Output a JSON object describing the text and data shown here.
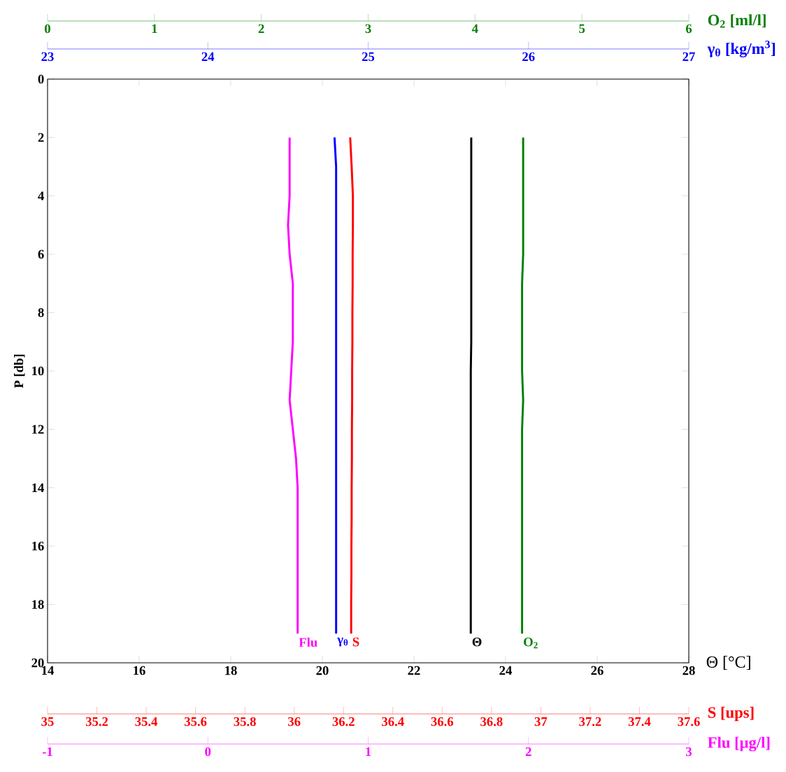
{
  "chart_data": [
    {
      "type": "line",
      "xlabel": "Θ [°C]",
      "ylabel": "P [db]",
      "xlim": [
        14,
        28
      ],
      "xticks": [
        14,
        16,
        18,
        20,
        22,
        24,
        26,
        28
      ],
      "ylim": [
        20,
        0
      ],
      "yticks": [
        0,
        2,
        4,
        6,
        8,
        10,
        12,
        14,
        16,
        18,
        20
      ],
      "x2lim": [
        0,
        6
      ],
      "x2ticks": [
        0,
        1,
        2,
        3,
        4,
        5,
        6
      ],
      "x2label": "O$_{2}$ [ml/l]",
      "series": [
        {
          "name": "Θ",
          "color": "#000000",
          "x": [
            23.25,
            23.25,
            23.25,
            23.25,
            23.25,
            23.25,
            23.25,
            23.25,
            23.24,
            23.24,
            23.24,
            23.24,
            23.24,
            23.24,
            23.24,
            23.24,
            23.24,
            23.24
          ],
          "values": [
            2,
            3,
            4,
            5,
            6,
            7,
            8,
            9,
            10,
            11,
            12,
            13,
            14,
            15,
            16,
            17,
            18,
            19
          ]
        },
        {
          "name": "O$_{2}$",
          "color": "#008000",
          "axis": "x2",
          "x": [
            4.45,
            4.45,
            4.45,
            4.45,
            4.45,
            4.44,
            4.44,
            4.44,
            4.44,
            4.45,
            4.44,
            4.44,
            4.44,
            4.44,
            4.44,
            4.44,
            4.44,
            4.44
          ],
          "values": [
            2,
            3,
            4,
            5,
            6,
            7,
            8,
            9,
            10,
            11,
            12,
            13,
            14,
            15,
            16,
            17,
            18,
            19
          ]
        }
      ]
    },
    {
      "type": "line",
      "xlabel": "S [ups]",
      "tick_labels": "x",
      "xlim": [
        35,
        37.6
      ],
      "xticks": [
        35,
        35.2,
        35.4,
        35.6,
        35.8,
        36,
        36.2,
        36.4,
        36.6,
        36.8,
        37,
        37.2,
        37.4,
        37.6
      ],
      "ylim": [
        20,
        0
      ],
      "x2lim": [
        23,
        27
      ],
      "x2ticks": [
        23,
        24,
        25,
        26,
        27
      ],
      "x2label": "γ$_{θ}$ [kg/m$^{3}$]",
      "series": [
        {
          "name": "γ$_{θ}$",
          "color": "#0000ff",
          "axis": "x2",
          "x": [
            24.79,
            24.8,
            24.8,
            24.8,
            24.8,
            24.8,
            24.8,
            24.8,
            24.8,
            24.8,
            24.8,
            24.8,
            24.8,
            24.8,
            24.8,
            24.8,
            24.8,
            24.8
          ],
          "values": [
            2,
            3,
            4,
            5,
            6,
            7,
            8,
            9,
            10,
            11,
            12,
            13,
            14,
            15,
            16,
            17,
            18,
            19
          ]
        },
        {
          "name": "S",
          "color": "#ff0000",
          "x": [
            36.227,
            36.233,
            36.238,
            36.238,
            36.237,
            36.237,
            36.236,
            36.236,
            36.235,
            36.235,
            36.234,
            36.234,
            36.233,
            36.233,
            36.232,
            36.232,
            36.231,
            36.231
          ],
          "values": [
            2,
            3,
            4,
            5,
            6,
            7,
            8,
            9,
            10,
            11,
            12,
            13,
            14,
            15,
            16,
            17,
            18,
            19
          ]
        }
      ]
    },
    {
      "type": "line",
      "xlabel": "Flu [μg/l]",
      "tick_labels": "x",
      "xlim": [
        -1,
        3
      ],
      "xticks": [
        -1,
        0,
        1,
        2,
        3
      ],
      "ylim": [
        20,
        0
      ],
      "series": [
        {
          "name": "Flu",
          "color": "#ff00ff",
          "x": [
            0.51,
            0.51,
            0.51,
            0.5,
            0.51,
            0.53,
            0.53,
            0.53,
            0.52,
            0.51,
            0.53,
            0.55,
            0.56,
            0.56,
            0.56,
            0.56,
            0.56,
            0.56
          ],
          "values": [
            2,
            3,
            4,
            5,
            6,
            7,
            8,
            9,
            10,
            11,
            12,
            13,
            14,
            15,
            16,
            17,
            18,
            19
          ]
        }
      ]
    }
  ]
}
